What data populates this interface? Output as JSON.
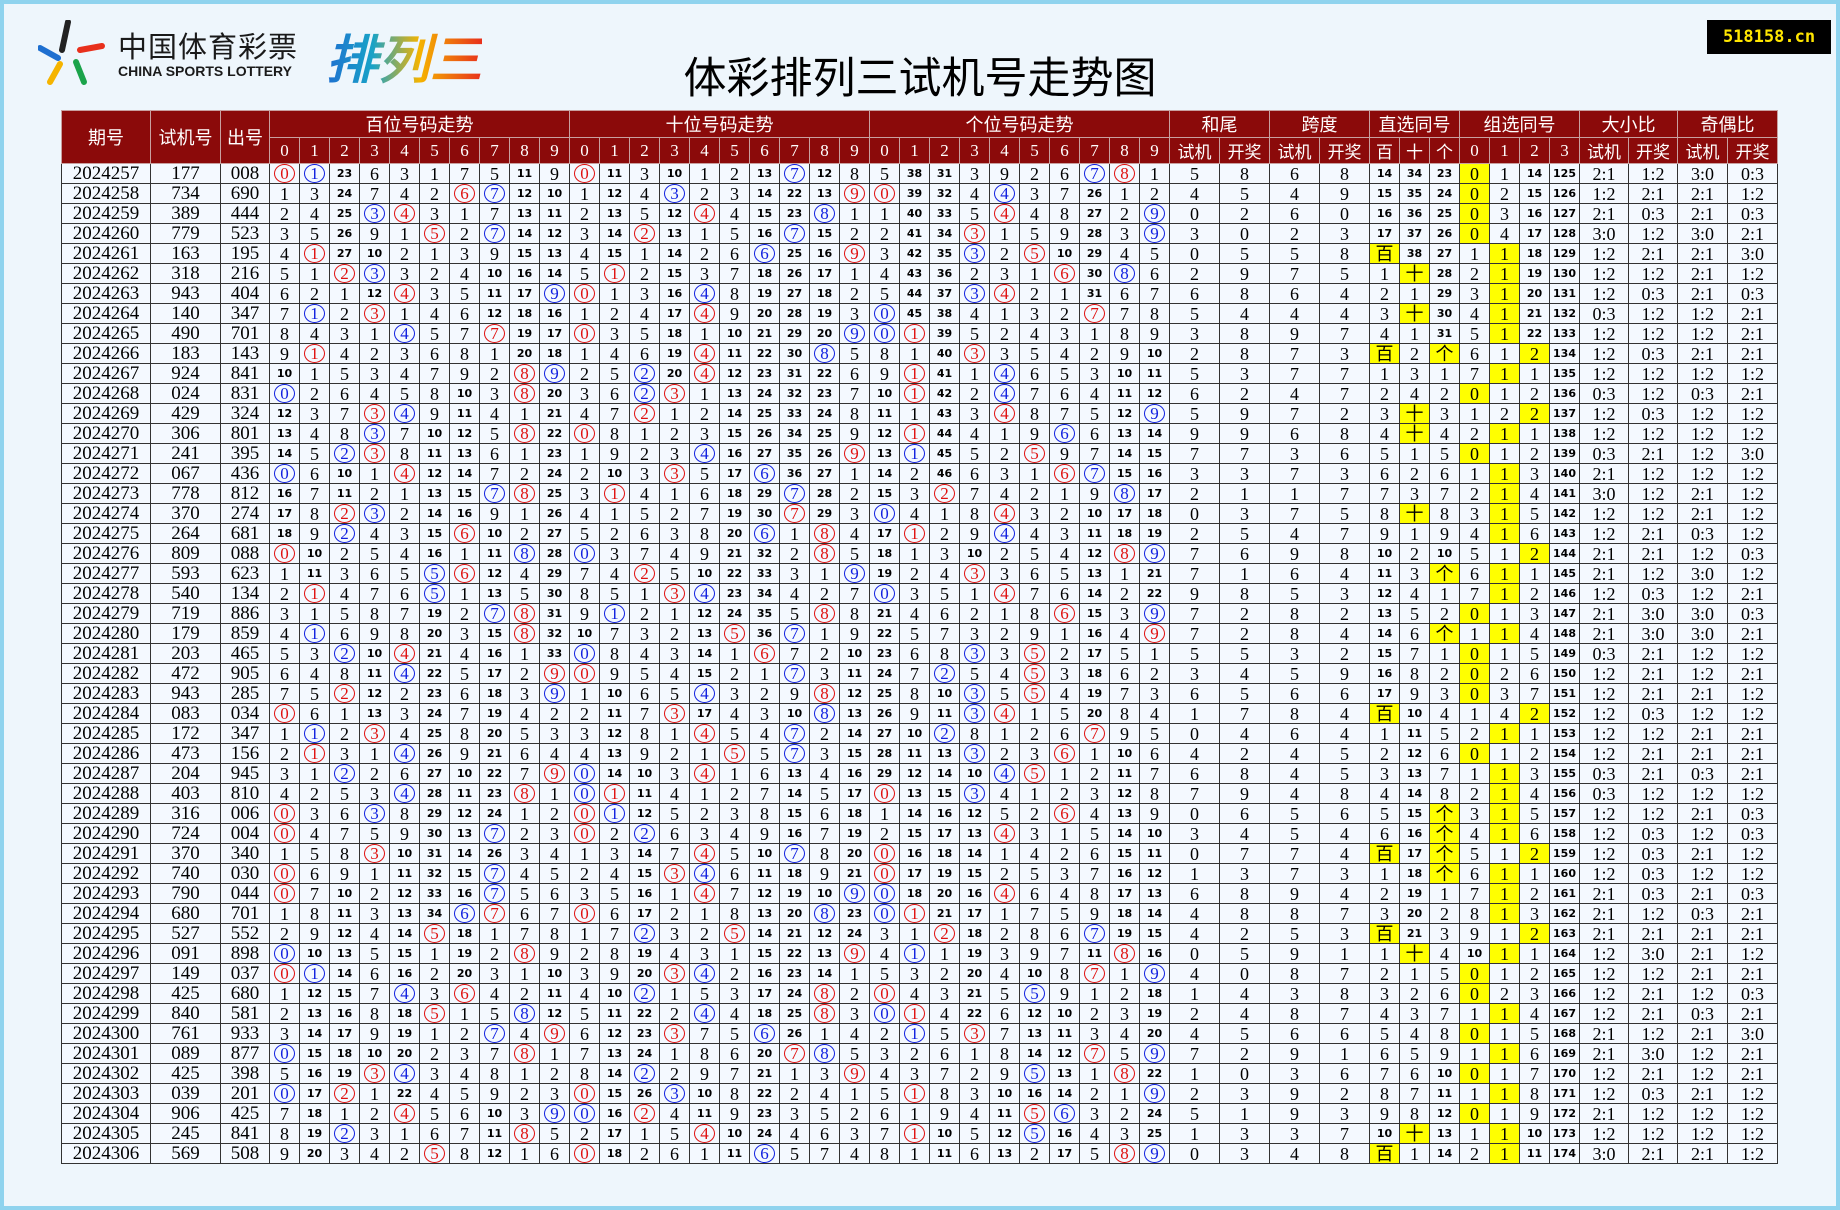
{
  "title": "体彩排列三试机号走势图",
  "watermark": "518158.cn",
  "logo": {
    "cn": "中国体育彩票",
    "en": "CHINA SPORTS LOTTERY",
    "product": "排列三"
  },
  "colors": {
    "header_bg": "#8b0a0a",
    "draw_circle": "#e01010",
    "trial_circle": "#1020e0",
    "highlight": "#ffff00"
  },
  "header": {
    "period": "期号",
    "trial": "试机号",
    "draw": "出号",
    "groups": [
      "百位号码走势",
      "十位号码走势",
      "个位号码走势",
      "和尾",
      "跨度",
      "直选同号",
      "组选同号",
      "大小比",
      "奇偶比"
    ],
    "sub_trial": "试机",
    "sub_draw": "开奖",
    "positions": [
      "百",
      "十",
      "个"
    ],
    "digits": [
      "0",
      "1",
      "2",
      "3",
      "4",
      "5",
      "6",
      "7",
      "8",
      "9"
    ],
    "zu_digits": [
      "0",
      "1",
      "2",
      "3"
    ]
  },
  "first_row_omission": {
    "bai": [
      null,
      null,
      23,
      6,
      3,
      1,
      7,
      5,
      11,
      9
    ],
    "shi": [
      null,
      11,
      3,
      10,
      1,
      2,
      13,
      null,
      12,
      8
    ],
    "ge": [
      5,
      38,
      31,
      3,
      9,
      2,
      6,
      null,
      null,
      1
    ],
    "direct": [
      14,
      34,
      23
    ],
    "group": [
      null,
      1,
      14,
      125
    ]
  },
  "rows": [
    {
      "period": "2024257",
      "trial": "177",
      "draw": "008"
    },
    {
      "period": "2024258",
      "trial": "734",
      "draw": "690"
    },
    {
      "period": "2024259",
      "trial": "389",
      "draw": "444"
    },
    {
      "period": "2024260",
      "trial": "779",
      "draw": "523"
    },
    {
      "period": "2024261",
      "trial": "163",
      "draw": "195"
    },
    {
      "period": "2024262",
      "trial": "318",
      "draw": "216"
    },
    {
      "period": "2024263",
      "trial": "943",
      "draw": "404"
    },
    {
      "period": "2024264",
      "trial": "140",
      "draw": "347"
    },
    {
      "period": "2024265",
      "trial": "490",
      "draw": "701"
    },
    {
      "period": "2024266",
      "trial": "183",
      "draw": "143"
    },
    {
      "period": "2024267",
      "trial": "924",
      "draw": "841"
    },
    {
      "period": "2024268",
      "trial": "024",
      "draw": "831"
    },
    {
      "period": "2024269",
      "trial": "429",
      "draw": "324"
    },
    {
      "period": "2024270",
      "trial": "306",
      "draw": "801"
    },
    {
      "period": "2024271",
      "trial": "241",
      "draw": "395"
    },
    {
      "period": "2024272",
      "trial": "067",
      "draw": "436"
    },
    {
      "period": "2024273",
      "trial": "778",
      "draw": "812"
    },
    {
      "period": "2024274",
      "trial": "370",
      "draw": "274"
    },
    {
      "period": "2024275",
      "trial": "264",
      "draw": "681"
    },
    {
      "period": "2024276",
      "trial": "809",
      "draw": "088"
    },
    {
      "period": "2024277",
      "trial": "593",
      "draw": "623"
    },
    {
      "period": "2024278",
      "trial": "540",
      "draw": "134"
    },
    {
      "period": "2024279",
      "trial": "719",
      "draw": "886"
    },
    {
      "period": "2024280",
      "trial": "179",
      "draw": "859"
    },
    {
      "period": "2024281",
      "trial": "203",
      "draw": "465"
    },
    {
      "period": "2024282",
      "trial": "472",
      "draw": "905"
    },
    {
      "period": "2024283",
      "trial": "943",
      "draw": "285"
    },
    {
      "period": "2024284",
      "trial": "083",
      "draw": "034"
    },
    {
      "period": "2024285",
      "trial": "172",
      "draw": "347"
    },
    {
      "period": "2024286",
      "trial": "473",
      "draw": "156"
    },
    {
      "period": "2024287",
      "trial": "204",
      "draw": "945"
    },
    {
      "period": "2024288",
      "trial": "403",
      "draw": "810"
    },
    {
      "period": "2024289",
      "trial": "316",
      "draw": "006"
    },
    {
      "period": "2024290",
      "trial": "724",
      "draw": "004"
    },
    {
      "period": "2024291",
      "trial": "370",
      "draw": "340"
    },
    {
      "period": "2024292",
      "trial": "740",
      "draw": "030"
    },
    {
      "period": "2024293",
      "trial": "790",
      "draw": "044"
    },
    {
      "period": "2024294",
      "trial": "680",
      "draw": "701"
    },
    {
      "period": "2024295",
      "trial": "527",
      "draw": "552"
    },
    {
      "period": "2024296",
      "trial": "091",
      "draw": "898"
    },
    {
      "period": "2024297",
      "trial": "149",
      "draw": "037"
    },
    {
      "period": "2024298",
      "trial": "425",
      "draw": "680"
    },
    {
      "period": "2024299",
      "trial": "840",
      "draw": "581"
    },
    {
      "period": "2024300",
      "trial": "761",
      "draw": "933"
    },
    {
      "period": "2024301",
      "trial": "089",
      "draw": "877"
    },
    {
      "period": "2024302",
      "trial": "425",
      "draw": "398"
    },
    {
      "period": "2024303",
      "trial": "039",
      "draw": "201"
    },
    {
      "period": "2024304",
      "trial": "906",
      "draw": "425"
    },
    {
      "period": "2024305",
      "trial": "245",
      "draw": "841"
    },
    {
      "period": "2024306",
      "trial": "569",
      "draw": "508"
    }
  ]
}
